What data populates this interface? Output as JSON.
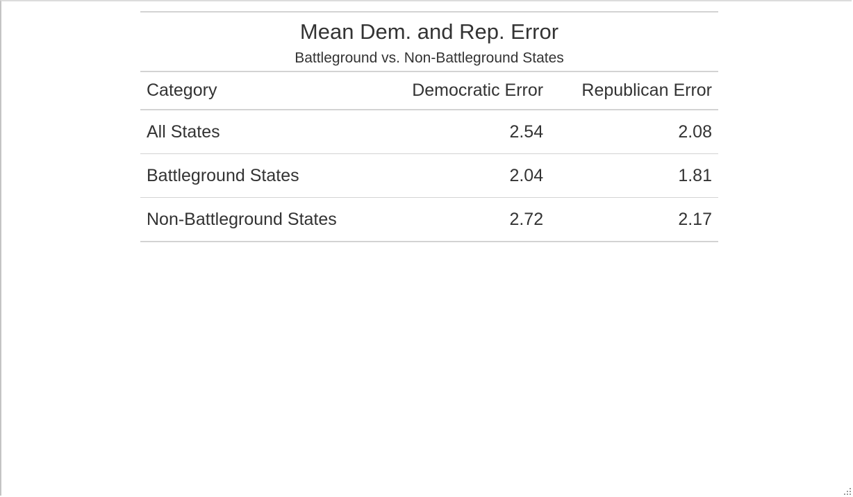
{
  "table": {
    "title": "Mean Dem. and Rep. Error",
    "subtitle": "Battleground vs. Non-Battleground States",
    "columns": [
      "Category",
      "Democratic Error",
      "Republican Error"
    ],
    "rows": [
      {
        "category": "All States",
        "dem_error": "2.54",
        "rep_error": "2.08"
      },
      {
        "category": "Battleground States",
        "dem_error": "2.04",
        "rep_error": "1.81"
      },
      {
        "category": "Non-Battleground States",
        "dem_error": "2.72",
        "rep_error": "2.17"
      }
    ]
  },
  "icons": {
    "resize_grip": "resize-grip-icon"
  },
  "colors": {
    "text": "#333333",
    "rule": "#d3d3d3",
    "background": "#ffffff"
  }
}
